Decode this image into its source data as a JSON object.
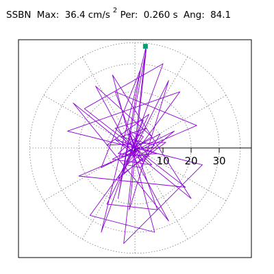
{
  "header": {
    "station": "SSBN",
    "max_label": "Max:",
    "max_value": "36.4",
    "max_unit": "cm/s",
    "max_exp": "2",
    "per_label": "Per:",
    "per_value": "0.260 s",
    "ang_label": "Ang:",
    "ang_value": "84.1"
  },
  "chart_data": {
    "type": "scatter",
    "subtype": "polar-particle-motion",
    "title": "",
    "xlabel": "",
    "ylabel": "",
    "radial_ticks": [
      10,
      20,
      30
    ],
    "radial_tick_labels": [
      "10",
      "20",
      "30"
    ],
    "grid": "dotted",
    "max_amplitude": 36.4,
    "max_angle_deg": 84.1,
    "trace_color": "#8b00d6",
    "marker_color": "#00a070",
    "trace_points": [
      [
        0,
        0
      ],
      [
        3,
        4
      ],
      [
        -2,
        6
      ],
      [
        5,
        -3
      ],
      [
        -6,
        -2
      ],
      [
        4,
        7
      ],
      [
        -5,
        4
      ],
      [
        7,
        1
      ],
      [
        -3,
        -6
      ],
      [
        2,
        -7
      ],
      [
        9,
        5
      ],
      [
        -8,
        -4
      ],
      [
        6,
        -6
      ],
      [
        -7,
        7
      ],
      [
        3,
        10
      ],
      [
        -4,
        -9
      ],
      [
        11,
        2
      ],
      [
        -10,
        1
      ],
      [
        5,
        12
      ],
      [
        -6,
        -11
      ],
      [
        14,
        6
      ],
      [
        -12,
        -7
      ],
      [
        2,
        28
      ],
      [
        -6,
        -18
      ],
      [
        4,
        35
      ],
      [
        -2,
        -22
      ],
      [
        12,
        24
      ],
      [
        -10,
        -20
      ],
      [
        8,
        -22
      ],
      [
        -7,
        20
      ],
      [
        22,
        8
      ],
      [
        -20,
        -10
      ],
      [
        18,
        -14
      ],
      [
        -18,
        14
      ],
      [
        10,
        30
      ],
      [
        -12,
        -30
      ],
      [
        4,
        36.2
      ],
      [
        -4,
        -34
      ],
      [
        24,
        -6
      ],
      [
        -24,
        6
      ],
      [
        16,
        20
      ],
      [
        -16,
        -24
      ],
      [
        7,
        -30
      ],
      [
        -8,
        26
      ],
      [
        20,
        -18
      ],
      [
        -22,
        16
      ],
      [
        12,
        -26
      ],
      [
        -14,
        22
      ],
      [
        6,
        4
      ],
      [
        -5,
        -3
      ],
      [
        8,
        -2
      ],
      [
        -7,
        3
      ],
      [
        3,
        -5
      ],
      [
        -2,
        5
      ],
      [
        0,
        0
      ]
    ]
  }
}
